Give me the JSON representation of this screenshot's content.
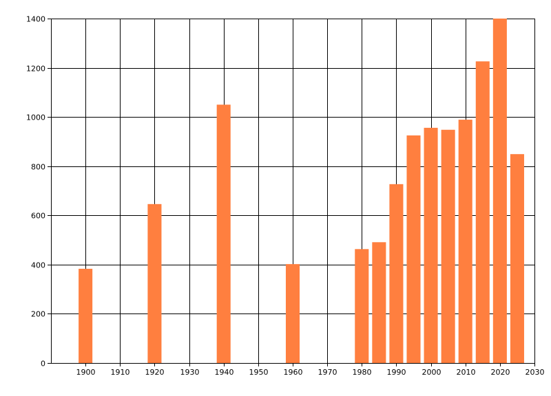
{
  "chart_data": {
    "type": "bar",
    "title": "",
    "xlabel": "",
    "ylabel": "",
    "x": [
      1900,
      1920,
      1940,
      1960,
      1980,
      1985,
      1990,
      1995,
      2000,
      2005,
      2010,
      2015,
      2020,
      2025
    ],
    "values": [
      383,
      646,
      1050,
      402,
      463,
      491,
      727,
      925,
      956,
      948,
      989,
      1226,
      1400,
      849
    ],
    "xlim": [
      1890,
      2030
    ],
    "ylim": [
      0,
      1400
    ],
    "x_ticks": [
      "1900",
      "1910",
      "1920",
      "1930",
      "1940",
      "1950",
      "1960",
      "1970",
      "1980",
      "1990",
      "2000",
      "2010",
      "2020",
      "2030"
    ],
    "y_ticks": [
      "0",
      "200",
      "400",
      "600",
      "800",
      "1000",
      "1200",
      "1400"
    ],
    "bar_width_years": 4,
    "grid": true,
    "legend": "none",
    "colors": {
      "bar": "#ff7f3f",
      "grid": "#000000",
      "axis": "#000000"
    }
  }
}
